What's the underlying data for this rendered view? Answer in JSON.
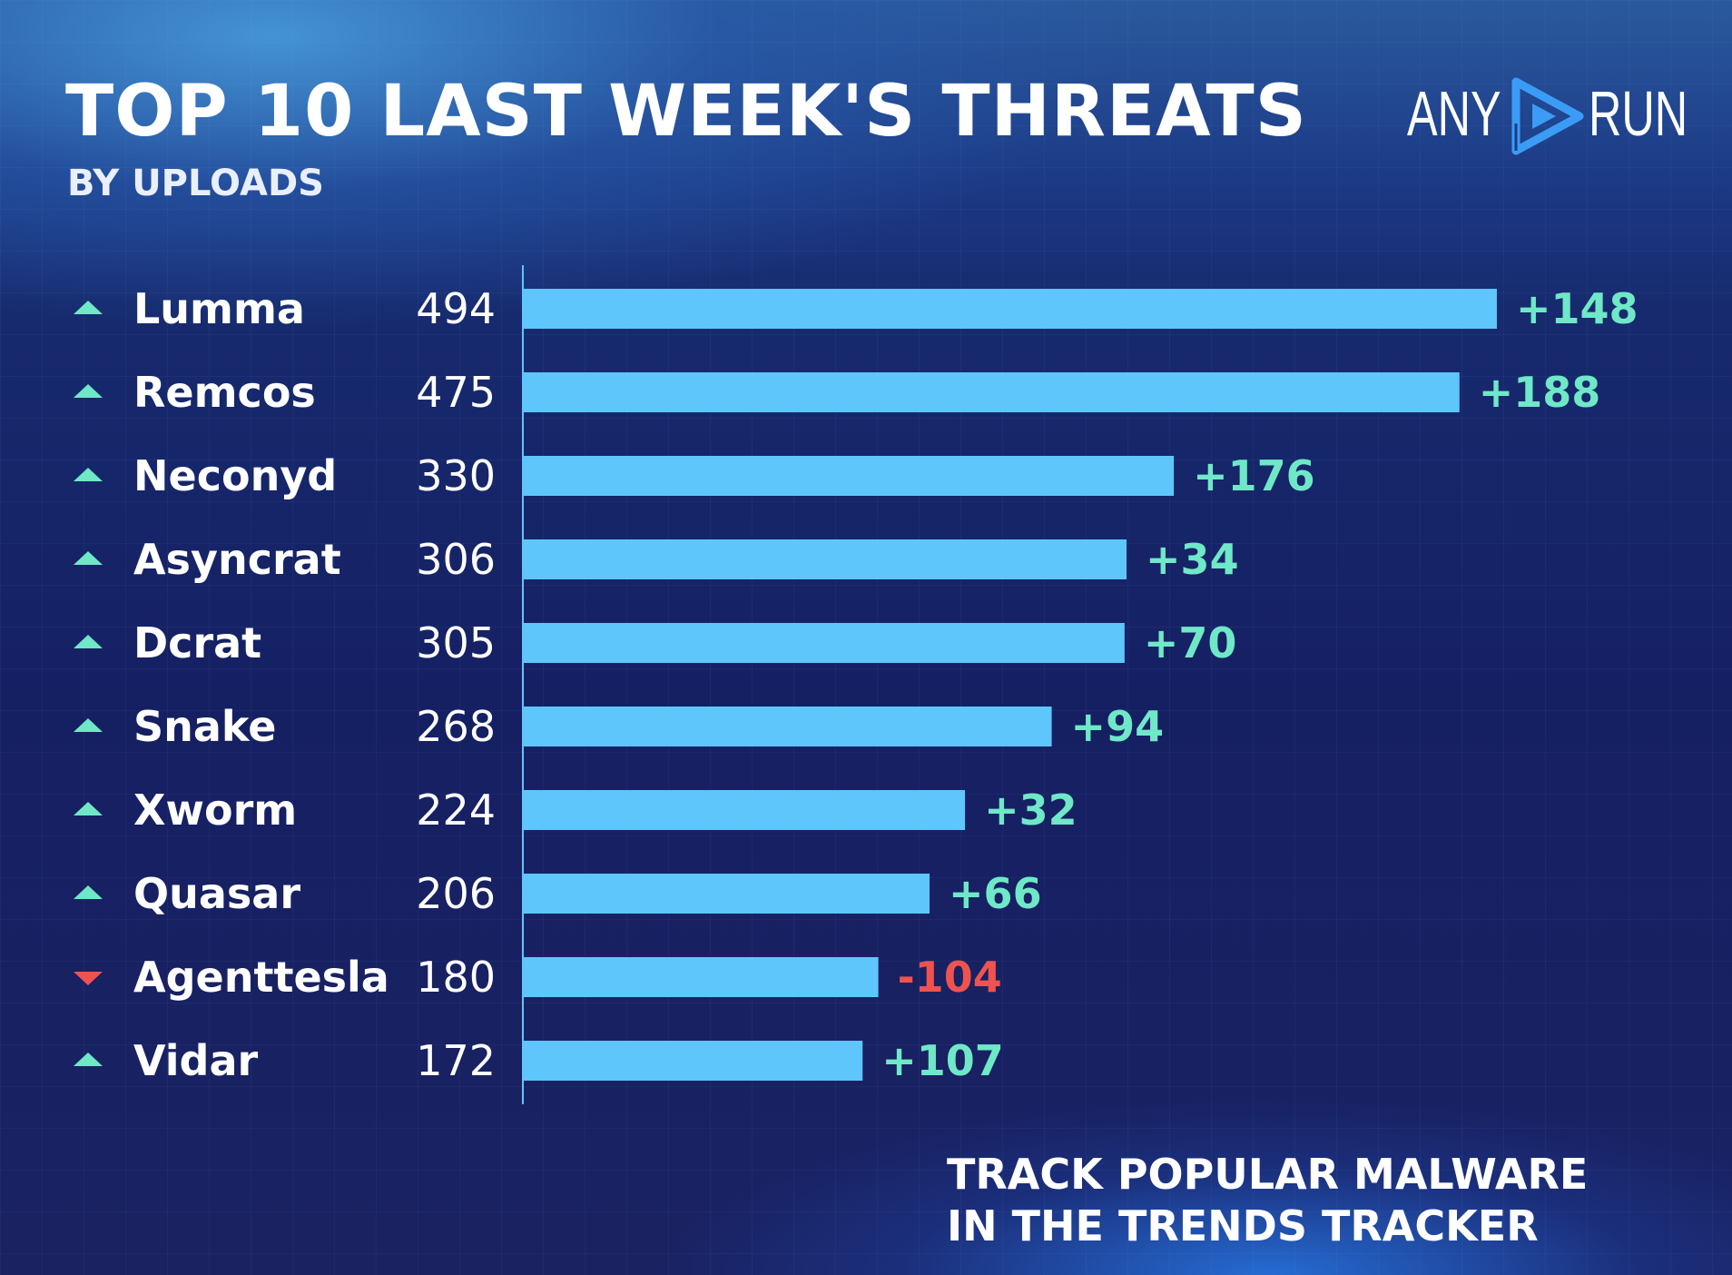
{
  "title": "TOP 10 LAST WEEK'S THREATS",
  "subtitle": "BY UPLOADS",
  "logo": {
    "left": "ANY",
    "right": "RUN"
  },
  "cta": {
    "line1": "TRACK POPULAR MALWARE",
    "line2": "IN THE TRENDS TRACKER"
  },
  "colors": {
    "bar": "#5ec6fb",
    "up": "#6fe8c7",
    "down": "#ef5350",
    "text": "#ffffff",
    "axis": "#5ec6fb"
  },
  "chart_data": {
    "type": "bar",
    "orientation": "horizontal",
    "categories": [
      "Lumma",
      "Remcos",
      "Neconyd",
      "Asyncrat",
      "Dcrat",
      "Snake",
      "Xworm",
      "Quasar",
      "Agenttesla",
      "Vidar"
    ],
    "values": [
      494,
      475,
      330,
      306,
      305,
      268,
      224,
      206,
      180,
      172
    ],
    "value_labels": [
      "494",
      "475",
      "330",
      "306",
      "305",
      "268",
      "224",
      "206",
      "180",
      "172"
    ],
    "changes": [
      148,
      188,
      176,
      34,
      70,
      94,
      32,
      66,
      -104,
      107
    ],
    "change_labels": [
      "+148",
      "+188",
      "+176",
      "+34",
      "+70",
      "+94",
      "+32",
      "+66",
      "-104",
      "+107"
    ],
    "trend": [
      "up",
      "up",
      "up",
      "up",
      "up",
      "up",
      "up",
      "up",
      "down",
      "up"
    ],
    "title": "TOP 10 LAST WEEK'S THREATS",
    "subtitle": "BY UPLOADS",
    "grid": false,
    "legend": "none"
  }
}
